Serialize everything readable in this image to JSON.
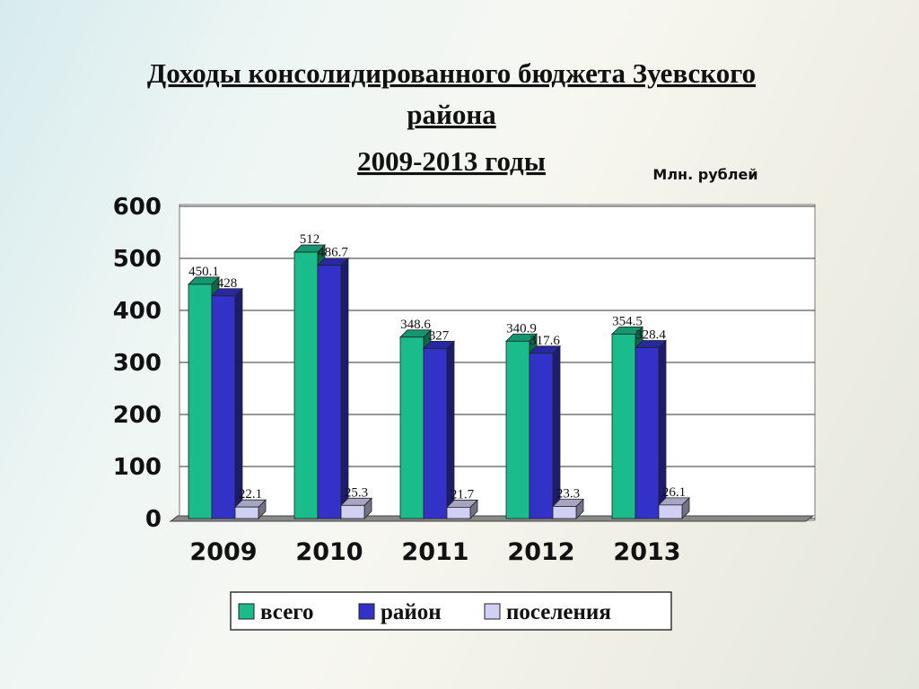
{
  "chart_data": {
    "type": "bar3d",
    "title": [
      "Доходы консолидированного бюджета Зуевского",
      "района"
    ],
    "subtitle": "2009-2013 годы",
    "unit_label": "Млн. рублей",
    "categories": [
      "2009",
      "2010",
      "2011",
      "2012",
      "2013",
      null
    ],
    "series": [
      {
        "name": "всего",
        "color": "#1abc8c",
        "values": [
          450.1,
          512,
          348.6,
          340.9,
          354.5,
          null
        ]
      },
      {
        "name": "район",
        "color": "#3232c8",
        "values": [
          428,
          486.7,
          327,
          317.6,
          328.4,
          null
        ]
      },
      {
        "name": "поселения",
        "color": "#d0d0f4",
        "values": [
          22.1,
          25.3,
          21.7,
          23.3,
          26.1,
          null
        ]
      }
    ],
    "ylim": [
      0,
      600
    ],
    "yticks": [
      0,
      100,
      200,
      300,
      400,
      500,
      600
    ],
    "grid": true,
    "legend": "bottom"
  }
}
